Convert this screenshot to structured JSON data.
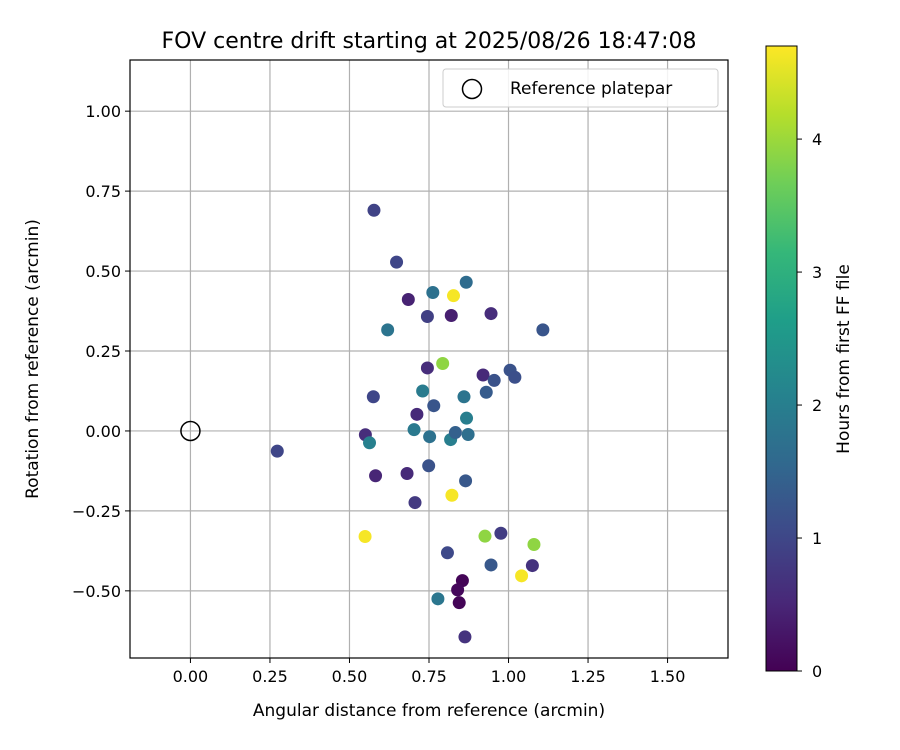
{
  "chart_data": {
    "type": "scatter",
    "title": "FOV centre drift starting at 2025/08/26 18:47:08",
    "xlabel": "Angular distance from reference (arcmin)",
    "ylabel": "Rotation from reference (arcmin)",
    "xlim": [
      -0.19,
      1.69
    ],
    "ylim": [
      -0.71,
      1.16
    ],
    "xticks": [
      "0.00",
      "0.25",
      "0.50",
      "0.75",
      "1.00",
      "1.25",
      "1.50"
    ],
    "yticks": [
      "1.00",
      "0.75",
      "0.50",
      "0.25",
      "0.00",
      "−0.25",
      "−0.50"
    ],
    "grid": true,
    "legend_position": "top-right",
    "colormap": "viridis",
    "colorbar": {
      "label": "Hours from first FF file",
      "range": [
        0,
        4.7
      ],
      "ticks": [
        "0",
        "1",
        "2",
        "3",
        "4"
      ]
    },
    "reference": {
      "label": "Reference platepar",
      "x": 0.0,
      "y": 0.0,
      "marker": "open-circle"
    },
    "points": [
      {
        "x": 0.577,
        "y": 0.69,
        "hours": 0.95
      },
      {
        "x": 0.648,
        "y": 0.528,
        "hours": 1.0
      },
      {
        "x": 0.685,
        "y": 0.411,
        "hours": 0.45
      },
      {
        "x": 0.762,
        "y": 0.433,
        "hours": 1.75
      },
      {
        "x": 0.867,
        "y": 0.465,
        "hours": 1.65
      },
      {
        "x": 0.827,
        "y": 0.423,
        "hours": 4.65
      },
      {
        "x": 0.62,
        "y": 0.316,
        "hours": 1.8
      },
      {
        "x": 0.745,
        "y": 0.358,
        "hours": 0.9
      },
      {
        "x": 0.82,
        "y": 0.361,
        "hours": 0.4
      },
      {
        "x": 0.945,
        "y": 0.367,
        "hours": 0.6
      },
      {
        "x": 1.108,
        "y": 0.316,
        "hours": 1.25
      },
      {
        "x": 0.745,
        "y": 0.197,
        "hours": 0.6
      },
      {
        "x": 0.793,
        "y": 0.211,
        "hours": 3.9
      },
      {
        "x": 0.92,
        "y": 0.175,
        "hours": 0.55
      },
      {
        "x": 0.955,
        "y": 0.158,
        "hours": 1.2
      },
      {
        "x": 1.005,
        "y": 0.19,
        "hours": 1.2
      },
      {
        "x": 1.02,
        "y": 0.168,
        "hours": 1.15
      },
      {
        "x": 0.575,
        "y": 0.107,
        "hours": 1.0
      },
      {
        "x": 0.73,
        "y": 0.125,
        "hours": 1.95
      },
      {
        "x": 0.712,
        "y": 0.052,
        "hours": 0.55
      },
      {
        "x": 0.765,
        "y": 0.079,
        "hours": 1.25
      },
      {
        "x": 0.86,
        "y": 0.107,
        "hours": 1.8
      },
      {
        "x": 0.93,
        "y": 0.121,
        "hours": 1.35
      },
      {
        "x": 0.868,
        "y": 0.04,
        "hours": 2.0
      },
      {
        "x": 0.55,
        "y": -0.012,
        "hours": 0.6
      },
      {
        "x": 0.563,
        "y": -0.037,
        "hours": 2.05
      },
      {
        "x": 0.703,
        "y": 0.004,
        "hours": 1.9
      },
      {
        "x": 0.752,
        "y": -0.018,
        "hours": 1.75
      },
      {
        "x": 0.818,
        "y": -0.027,
        "hours": 2.0
      },
      {
        "x": 0.833,
        "y": -0.005,
        "hours": 1.45
      },
      {
        "x": 0.873,
        "y": -0.011,
        "hours": 1.7
      },
      {
        "x": 0.273,
        "y": -0.063,
        "hours": 1.0
      },
      {
        "x": 0.582,
        "y": -0.14,
        "hours": 0.5
      },
      {
        "x": 0.681,
        "y": -0.133,
        "hours": 0.55
      },
      {
        "x": 0.749,
        "y": -0.109,
        "hours": 1.2
      },
      {
        "x": 0.865,
        "y": -0.156,
        "hours": 1.3
      },
      {
        "x": 0.706,
        "y": -0.224,
        "hours": 0.8
      },
      {
        "x": 0.822,
        "y": -0.201,
        "hours": 4.65
      },
      {
        "x": 0.549,
        "y": -0.33,
        "hours": 4.65
      },
      {
        "x": 0.926,
        "y": -0.329,
        "hours": 3.9
      },
      {
        "x": 0.976,
        "y": -0.32,
        "hours": 0.85
      },
      {
        "x": 1.08,
        "y": -0.355,
        "hours": 3.9
      },
      {
        "x": 0.808,
        "y": -0.381,
        "hours": 1.05
      },
      {
        "x": 0.945,
        "y": -0.419,
        "hours": 1.3
      },
      {
        "x": 1.041,
        "y": -0.453,
        "hours": 4.65
      },
      {
        "x": 1.075,
        "y": -0.421,
        "hours": 0.7
      },
      {
        "x": 0.855,
        "y": -0.468,
        "hours": 0.05
      },
      {
        "x": 0.84,
        "y": -0.497,
        "hours": 0.1
      },
      {
        "x": 0.845,
        "y": -0.537,
        "hours": 0.05
      },
      {
        "x": 0.778,
        "y": -0.525,
        "hours": 1.85
      },
      {
        "x": 0.863,
        "y": -0.644,
        "hours": 0.7
      }
    ]
  }
}
